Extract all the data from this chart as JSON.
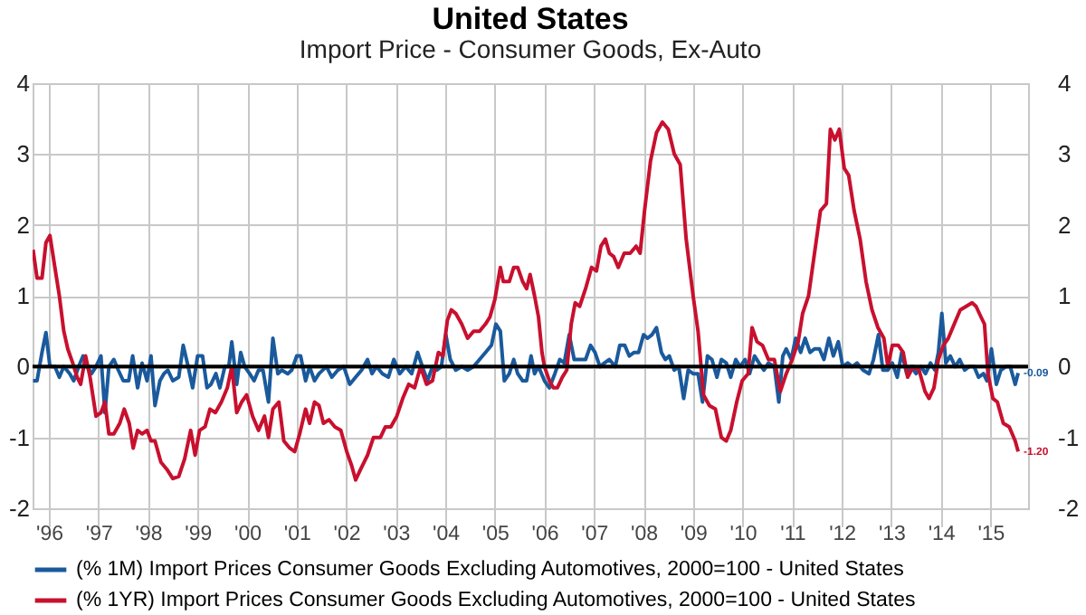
{
  "chart_data": {
    "type": "line",
    "title": "United States",
    "subtitle": "Import Price - Consumer Goods, Ex-Auto",
    "xlim": [
      1995.67,
      2015.76
    ],
    "xticks": [
      {
        "value": 1996,
        "label": "'96"
      },
      {
        "value": 1997,
        "label": "'97"
      },
      {
        "value": 1998,
        "label": "'98"
      },
      {
        "value": 1999,
        "label": "'99"
      },
      {
        "value": 2000,
        "label": "'00"
      },
      {
        "value": 2001,
        "label": "'01"
      },
      {
        "value": 2002,
        "label": "'02"
      },
      {
        "value": 2003,
        "label": "'03"
      },
      {
        "value": 2004,
        "label": "'04"
      },
      {
        "value": 2005,
        "label": "'05"
      },
      {
        "value": 2006,
        "label": "'06"
      },
      {
        "value": 2007,
        "label": "'07"
      },
      {
        "value": 2008,
        "label": "'08"
      },
      {
        "value": 2009,
        "label": "'09"
      },
      {
        "value": 2010,
        "label": "'10"
      },
      {
        "value": 2011,
        "label": "'11"
      },
      {
        "value": 2012,
        "label": "'12"
      },
      {
        "value": 2013,
        "label": "'13"
      },
      {
        "value": 2014,
        "label": "'14"
      },
      {
        "value": 2015,
        "label": "'15"
      }
    ],
    "ylim": [
      -2,
      4
    ],
    "yticks": [
      -2,
      -1,
      0,
      1,
      2,
      3,
      4
    ],
    "y2lim": [
      -2,
      4
    ],
    "y2ticks": [
      -2,
      -1,
      0,
      1,
      2,
      3,
      4
    ],
    "grid": true,
    "legend": "bottom",
    "marker": "none",
    "line_style": "solid",
    "ref_lines": [
      {
        "axis": "y",
        "value": 0,
        "color": "#000000"
      }
    ],
    "annotations": [
      {
        "text": "-0.09",
        "x": 2015.56,
        "y": -0.09
      },
      {
        "text": "-1.20",
        "x": 2015.56,
        "y": -1.2
      }
    ],
    "series": [
      {
        "name": "(% 1M) Import Prices Consumer Goods Excluding Automotives, 2000=100 - United States",
        "color": "#1a5a9c",
        "x": [
          1995.68,
          1995.76,
          1995.86,
          1995.94,
          1996.02,
          1996.12,
          1996.21,
          1996.3,
          1996.42,
          1996.5,
          1996.6,
          1996.69,
          1996.77,
          1996.86,
          1996.95,
          1997.05,
          1997.13,
          1997.21,
          1997.31,
          1997.4,
          1997.5,
          1997.61,
          1997.69,
          1997.79,
          1997.88,
          1997.98,
          1998.06,
          1998.14,
          1998.24,
          1998.32,
          1998.4,
          1998.5,
          1998.62,
          1998.71,
          1998.81,
          1998.9,
          1999.0,
          1999.1,
          1999.19,
          1999.27,
          1999.37,
          1999.45,
          1999.55,
          1999.63,
          1999.69,
          1999.79,
          1999.87,
          1999.95,
          2000.05,
          2000.14,
          2000.23,
          2000.32,
          2000.43,
          2000.52,
          2000.62,
          2000.7,
          2000.82,
          2000.9,
          2001.0,
          2001.08,
          2001.18,
          2001.26,
          2001.36,
          2001.45,
          2001.6,
          2001.71,
          2001.83,
          2001.95,
          2002.07,
          2002.19,
          2002.31,
          2002.43,
          2002.52,
          2002.61,
          2002.73,
          2002.85,
          2002.96,
          2003.08,
          2003.2,
          2003.32,
          2003.44,
          2003.56,
          2003.64,
          2003.74,
          2003.83,
          2003.92,
          2004.01,
          2004.1,
          2004.21,
          2004.33,
          2004.45,
          2004.57,
          2004.69,
          2004.81,
          2004.93,
          2005.02,
          2005.11,
          2005.19,
          2005.29,
          2005.38,
          2005.46,
          2005.56,
          2005.64,
          2005.73,
          2005.8,
          2005.88,
          2006.0,
          2006.1,
          2006.21,
          2006.31,
          2006.4,
          2006.5,
          2006.6,
          2006.71,
          2006.83,
          2006.93,
          2007.02,
          2007.12,
          2007.21,
          2007.31,
          2007.43,
          2007.52,
          2007.62,
          2007.71,
          2007.81,
          2007.9,
          2008.0,
          2008.08,
          2008.17,
          2008.26,
          2008.36,
          2008.44,
          2008.52,
          2008.62,
          2008.71,
          2008.81,
          2008.9,
          2009.0,
          2009.1,
          2009.19,
          2009.29,
          2009.38,
          2009.48,
          2009.57,
          2009.67,
          2009.76,
          2009.86,
          2009.95,
          2010.05,
          2010.14,
          2010.24,
          2010.33,
          2010.43,
          2010.52,
          2010.64,
          2010.73,
          2010.81,
          2010.88,
          2010.98,
          2011.07,
          2011.17,
          2011.26,
          2011.36,
          2011.45,
          2011.55,
          2011.64,
          2011.74,
          2011.83,
          2011.93,
          2012.02,
          2012.12,
          2012.21,
          2012.31,
          2012.43,
          2012.55,
          2012.64,
          2012.74,
          2012.83,
          2012.93,
          2013.02,
          2013.12,
          2013.21,
          2013.31,
          2013.4,
          2013.5,
          2013.6,
          2013.69,
          2013.79,
          2013.88,
          2013.95,
          2014.02,
          2014.1,
          2014.19,
          2014.29,
          2014.38,
          2014.48,
          2014.57,
          2014.67,
          2014.76,
          2014.86,
          2014.93,
          2015.02,
          2015.12,
          2015.21,
          2015.31,
          2015.4,
          2015.5,
          2015.56
        ],
        "values": [
          -0.2,
          -0.2,
          0.2,
          0.48,
          0.0,
          0.0,
          -0.15,
          0.0,
          -0.1,
          -0.2,
          0.0,
          0.15,
          0.0,
          -0.1,
          0.0,
          0.15,
          -0.65,
          0.0,
          0.1,
          -0.05,
          -0.2,
          -0.2,
          0.15,
          -0.3,
          0.05,
          -0.2,
          0.15,
          -0.55,
          -0.2,
          -0.1,
          -0.05,
          -0.2,
          -0.15,
          0.3,
          0.0,
          -0.3,
          0.15,
          0.15,
          -0.3,
          -0.25,
          -0.1,
          -0.3,
          0.0,
          0.0,
          0.35,
          -0.25,
          0.2,
          0.0,
          -0.1,
          -0.2,
          -0.05,
          -0.05,
          -0.5,
          0.4,
          -0.1,
          -0.05,
          -0.1,
          -0.05,
          0.15,
          0.15,
          -0.2,
          0.0,
          -0.2,
          -0.1,
          0.0,
          -0.15,
          -0.05,
          0.0,
          -0.25,
          -0.15,
          -0.05,
          0.1,
          -0.1,
          0.0,
          -0.1,
          -0.15,
          0.1,
          -0.1,
          0.0,
          -0.1,
          0.2,
          -0.05,
          -0.2,
          0.0,
          -0.05,
          0.0,
          0.45,
          0.1,
          -0.05,
          0.0,
          -0.05,
          0.0,
          0.1,
          0.2,
          0.3,
          0.6,
          0.5,
          -0.2,
          -0.1,
          0.1,
          -0.1,
          -0.2,
          -0.2,
          0.15,
          -0.1,
          0.0,
          -0.2,
          -0.3,
          -0.1,
          0.1,
          0.05,
          0.45,
          0.1,
          0.1,
          0.1,
          0.3,
          0.2,
          0.0,
          0.05,
          0.1,
          0.0,
          0.3,
          0.3,
          0.15,
          0.2,
          0.2,
          0.45,
          0.4,
          0.45,
          0.55,
          0.2,
          0.1,
          0.15,
          -0.05,
          0.0,
          -0.45,
          -0.05,
          -0.1,
          -0.1,
          -0.5,
          0.15,
          0.1,
          -0.15,
          0.1,
          0.05,
          -0.15,
          0.1,
          0.0,
          0.1,
          -0.1,
          0.15,
          0.05,
          -0.05,
          0.05,
          0.0,
          -0.5,
          0.15,
          0.25,
          0.1,
          0.4,
          0.2,
          0.4,
          0.2,
          0.25,
          0.25,
          0.1,
          0.4,
          0.15,
          0.35,
          0.0,
          0.05,
          0.0,
          0.05,
          -0.05,
          -0.1,
          0.1,
          0.45,
          -0.05,
          -0.05,
          0.05,
          -0.15,
          0.2,
          -0.1,
          0.0,
          -0.1,
          0.0,
          -0.1,
          0.05,
          -0.05,
          0.2,
          0.75,
          0.05,
          0.15,
          0.0,
          0.1,
          -0.05,
          0.0,
          0.0,
          -0.15,
          -0.1,
          -0.2,
          0.25,
          -0.25,
          -0.05,
          0.0,
          0.0,
          -0.25,
          -0.09
        ]
      },
      {
        "name": "(% 1YR) Import Prices Consumer Goods Excluding Automotives, 2000=100 - United States",
        "color": "#c8102e",
        "x": [
          1995.68,
          1995.76,
          1995.86,
          1995.94,
          1996.02,
          1996.12,
          1996.21,
          1996.3,
          1996.38,
          1996.48,
          1996.57,
          1996.64,
          1996.74,
          1996.83,
          1996.95,
          1997.05,
          1997.13,
          1997.21,
          1997.31,
          1997.43,
          1997.52,
          1997.62,
          1997.7,
          1997.79,
          1997.88,
          1997.98,
          1998.06,
          1998.14,
          1998.26,
          1998.38,
          1998.5,
          1998.62,
          1998.74,
          1998.86,
          1998.95,
          1999.04,
          1999.15,
          1999.25,
          1999.36,
          1999.48,
          1999.6,
          1999.69,
          1999.79,
          1999.89,
          1999.99,
          2000.11,
          2000.23,
          2000.35,
          2000.43,
          2000.52,
          2000.64,
          2000.74,
          2000.86,
          2000.96,
          2001.06,
          2001.18,
          2001.26,
          2001.36,
          2001.45,
          2001.54,
          2001.65,
          2001.77,
          2001.89,
          2002.01,
          2002.11,
          2002.19,
          2002.29,
          2002.43,
          2002.55,
          2002.69,
          2002.79,
          2002.9,
          2003.02,
          2003.14,
          2003.26,
          2003.38,
          2003.5,
          2003.62,
          2003.74,
          2003.86,
          2003.95,
          2004.04,
          2004.12,
          2004.21,
          2004.33,
          2004.45,
          2004.57,
          2004.69,
          2004.81,
          2004.9,
          2005.0,
          2005.11,
          2005.17,
          2005.29,
          2005.38,
          2005.46,
          2005.56,
          2005.64,
          2005.71,
          2005.8,
          2005.88,
          2005.95,
          2006.0,
          2006.1,
          2006.18,
          2006.26,
          2006.36,
          2006.45,
          2006.54,
          2006.62,
          2006.71,
          2006.83,
          2006.95,
          2007.05,
          2007.14,
          2007.23,
          2007.31,
          2007.4,
          2007.49,
          2007.61,
          2007.73,
          2007.85,
          2007.93,
          2008.02,
          2008.14,
          2008.26,
          2008.38,
          2008.5,
          2008.62,
          2008.74,
          2008.86,
          2009.0,
          2009.1,
          2009.21,
          2009.33,
          2009.45,
          2009.57,
          2009.67,
          2009.76,
          2009.88,
          2009.99,
          2010.11,
          2010.19,
          2010.29,
          2010.4,
          2010.52,
          2010.64,
          2010.76,
          2010.88,
          2011.0,
          2011.12,
          2011.21,
          2011.33,
          2011.45,
          2011.57,
          2011.69,
          2011.77,
          2011.86,
          2011.95,
          2012.05,
          2012.14,
          2012.25,
          2012.37,
          2012.49,
          2012.61,
          2012.73,
          2012.85,
          2012.93,
          2013.02,
          2013.14,
          2013.24,
          2013.33,
          2013.44,
          2013.56,
          2013.68,
          2013.76,
          2013.86,
          2013.95,
          2014.05,
          2014.15,
          2014.27,
          2014.39,
          2014.51,
          2014.63,
          2014.71,
          2014.81,
          2014.88,
          2014.95,
          2015.05,
          2015.14,
          2015.26,
          2015.38,
          2015.5,
          2015.56
        ],
        "values": [
          1.65,
          1.25,
          1.25,
          1.75,
          1.85,
          1.4,
          1.0,
          0.5,
          0.25,
          0.05,
          -0.15,
          -0.25,
          0.15,
          -0.15,
          -0.7,
          -0.65,
          -0.5,
          -0.95,
          -0.95,
          -0.8,
          -0.6,
          -0.8,
          -1.15,
          -0.9,
          -0.95,
          -0.9,
          -1.05,
          -1.05,
          -1.35,
          -1.45,
          -1.58,
          -1.55,
          -1.3,
          -0.9,
          -1.25,
          -0.9,
          -0.85,
          -0.6,
          -0.65,
          -0.5,
          -0.3,
          0.0,
          -0.65,
          -0.5,
          -0.4,
          -0.7,
          -0.9,
          -0.7,
          -1.0,
          -0.6,
          -0.5,
          -1.05,
          -1.15,
          -1.2,
          -0.95,
          -0.6,
          -0.8,
          -0.5,
          -0.55,
          -0.8,
          -0.75,
          -0.85,
          -0.9,
          -1.2,
          -1.4,
          -1.6,
          -1.45,
          -1.25,
          -1.0,
          -1.0,
          -0.85,
          -0.85,
          -0.7,
          -0.45,
          -0.25,
          -0.3,
          0.0,
          -0.25,
          -0.2,
          0.2,
          0.15,
          0.65,
          0.8,
          0.75,
          0.6,
          0.4,
          0.5,
          0.5,
          0.6,
          0.7,
          0.95,
          1.4,
          1.2,
          1.2,
          1.4,
          1.4,
          1.2,
          1.1,
          1.3,
          1.0,
          0.7,
          0.2,
          0.0,
          -0.2,
          -0.3,
          -0.3,
          -0.15,
          -0.05,
          0.6,
          0.9,
          0.85,
          1.1,
          1.4,
          1.35,
          1.7,
          1.8,
          1.6,
          1.55,
          1.4,
          1.6,
          1.6,
          1.7,
          1.6,
          2.2,
          2.9,
          3.3,
          3.45,
          3.35,
          3.0,
          2.85,
          1.8,
          1.0,
          0.5,
          -0.4,
          -0.55,
          -0.6,
          -1.0,
          -1.05,
          -0.9,
          -0.5,
          -0.2,
          -0.1,
          0.55,
          0.35,
          0.3,
          0.1,
          0.1,
          -0.35,
          -0.1,
          0.1,
          0.35,
          0.75,
          1.0,
          1.6,
          2.2,
          2.3,
          3.35,
          3.2,
          3.35,
          2.8,
          2.7,
          2.2,
          1.8,
          1.2,
          0.8,
          0.55,
          0.4,
          0.0,
          0.3,
          0.3,
          0.2,
          -0.15,
          0.0,
          -0.05,
          -0.35,
          -0.45,
          -0.3,
          0.1,
          0.3,
          0.4,
          0.6,
          0.8,
          0.85,
          0.9,
          0.85,
          0.7,
          0.6,
          -0.1,
          -0.45,
          -0.5,
          -0.8,
          -0.85,
          -1.05,
          -1.2
        ]
      }
    ]
  }
}
